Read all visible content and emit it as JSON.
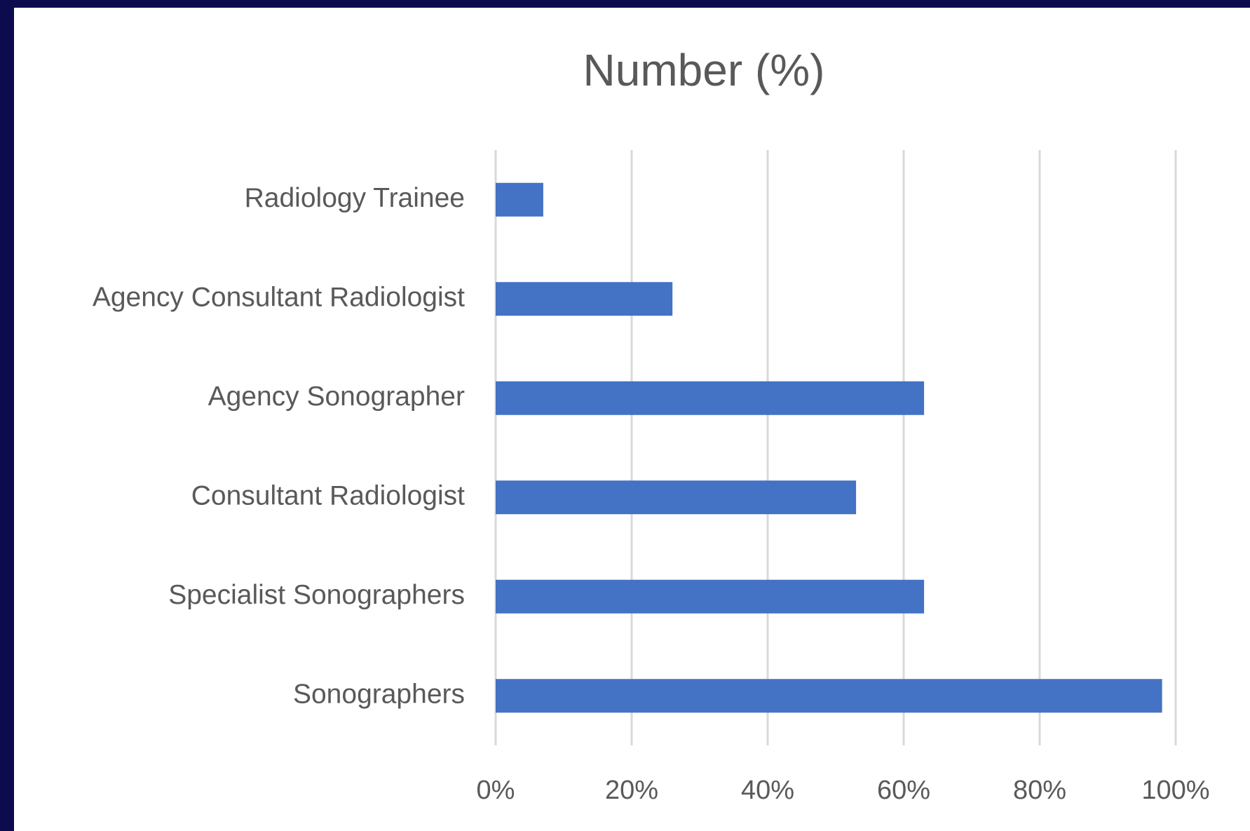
{
  "chart_data": {
    "type": "bar",
    "orientation": "horizontal",
    "title": "Number (%)",
    "categories": [
      "Radiology Trainee",
      "Agency Consultant Radiologist",
      "Agency Sonographer",
      "Consultant Radiologist",
      "Specialist Sonographers",
      "Sonographers"
    ],
    "values": [
      7,
      26,
      63,
      53,
      63,
      98
    ],
    "color": "#4472c4",
    "xlim": [
      0,
      100
    ],
    "xticks": [
      {
        "value": 0,
        "label": "0%"
      },
      {
        "value": 20,
        "label": "20%"
      },
      {
        "value": 40,
        "label": "40%"
      },
      {
        "value": 60,
        "label": "60%"
      },
      {
        "value": 80,
        "label": "80%"
      },
      {
        "value": 100,
        "label": "100%"
      }
    ],
    "grid": true
  }
}
